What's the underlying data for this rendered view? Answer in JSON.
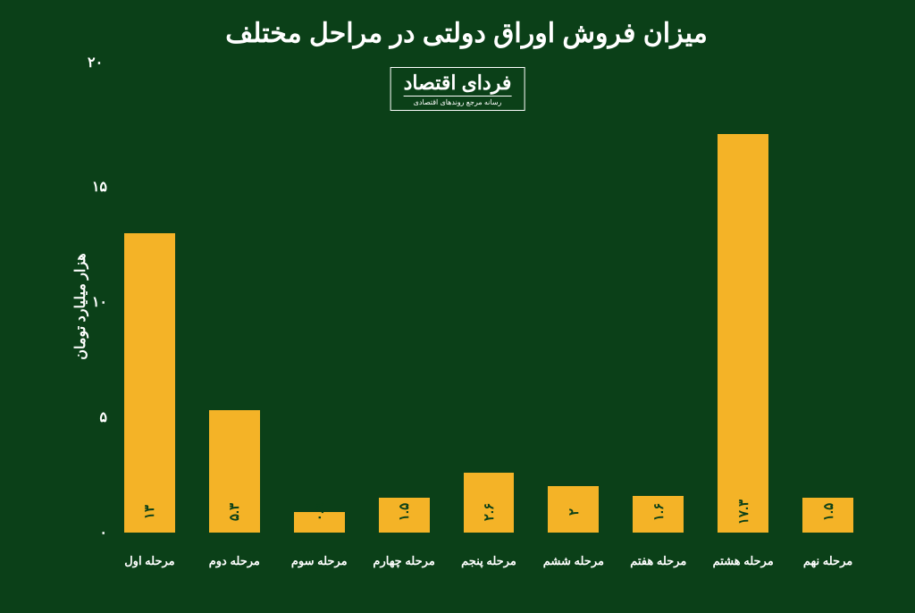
{
  "chart": {
    "type": "bar",
    "background_color": "#0b4018",
    "bar_color": "#f4b327",
    "text_color": "#ffffff",
    "title": "میزان فروش اوراق دولتی در مراحل مختلف",
    "title_fontsize": 30,
    "logo_main": "فردای اقتصاد",
    "logo_sub": "رسانه مرجع روندهای اقتصادی",
    "ylabel": "هزار میلیارد تومان",
    "ylabel_fontsize": 16,
    "ylim": [
      0,
      20
    ],
    "yticks": [
      {
        "v": 0,
        "label": "۰"
      },
      {
        "v": 5,
        "label": "۵"
      },
      {
        "v": 10,
        "label": "۱۰"
      },
      {
        "v": 15,
        "label": "۱۵"
      }
    ],
    "ytop_label": "۲۰",
    "xlabel_fontsize": 13,
    "value_fontsize": 15,
    "data": [
      {
        "label": "مرحله اول",
        "value": 13.0,
        "value_label": "۱۳"
      },
      {
        "label": "مرحله دوم",
        "value": 5.3,
        "value_label": "۵.۳"
      },
      {
        "label": "مرحله سوم",
        "value": 0.9,
        "value_label": "۰.۹"
      },
      {
        "label": "مرحله چهارم",
        "value": 1.5,
        "value_label": "۱.۵"
      },
      {
        "label": "مرحله پنجم",
        "value": 2.6,
        "value_label": "۲.۶"
      },
      {
        "label": "مرحله ششم",
        "value": 2.0,
        "value_label": "۲"
      },
      {
        "label": "مرحله هفتم",
        "value": 1.6,
        "value_label": "۱.۶"
      },
      {
        "label": "مرحله هشتم",
        "value": 17.3,
        "value_label": "۱۷.۳"
      },
      {
        "label": "مرحله نهم",
        "value": 1.5,
        "value_label": "۱.۵"
      }
    ]
  }
}
